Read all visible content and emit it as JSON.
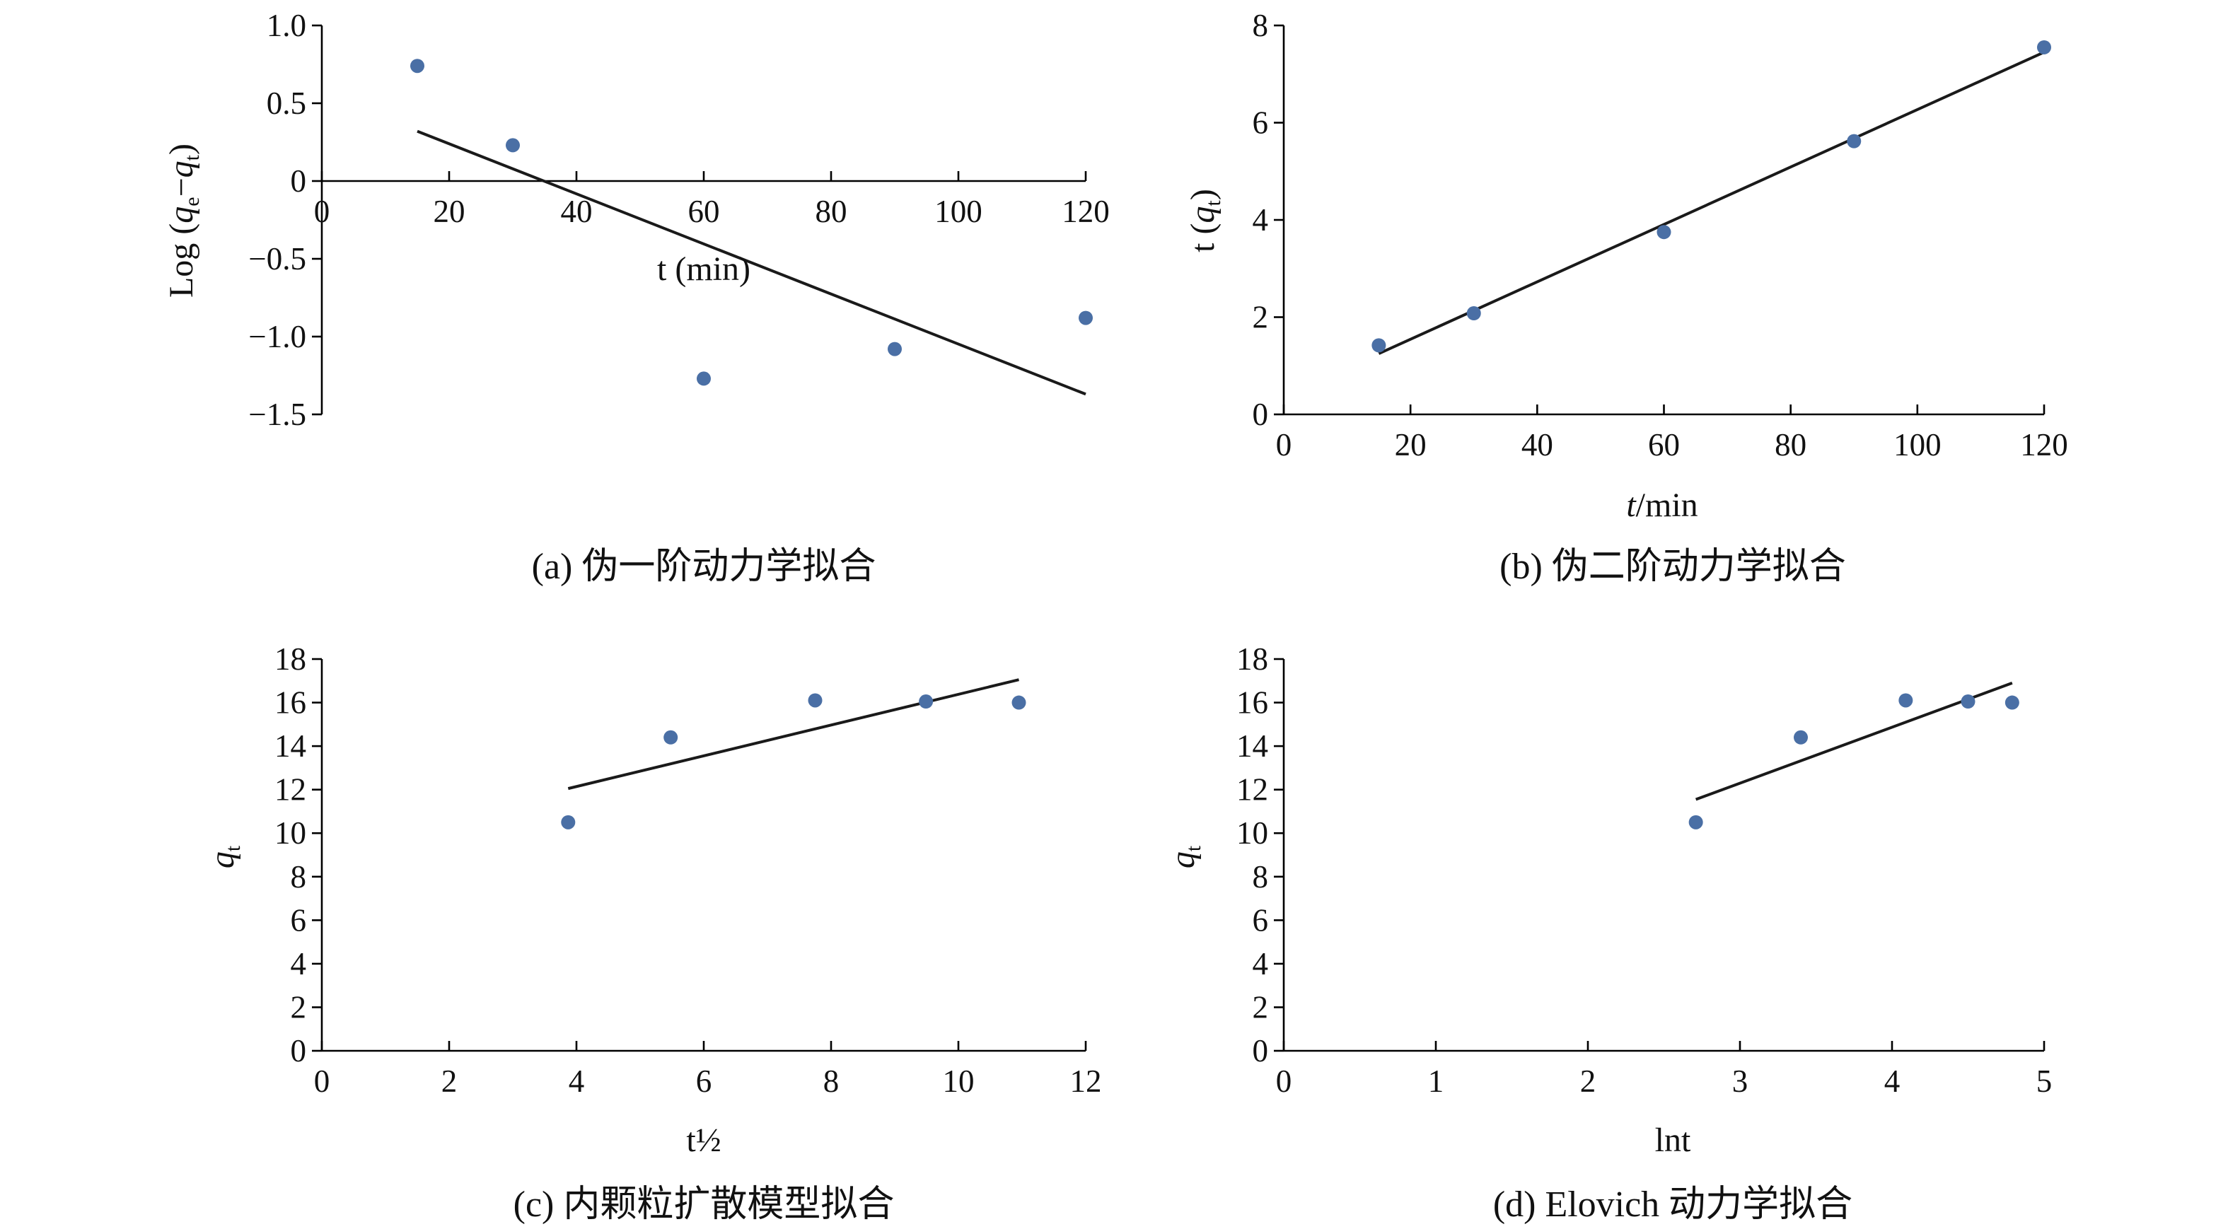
{
  "chart_data": [
    {
      "id": "a",
      "type": "scatter",
      "caption": "(a) 伪一阶动力学拟合",
      "ylabel": {
        "pre": "Log (",
        "q1": "q",
        "s1": "e",
        "mid": "−",
        "q2": "q",
        "s2": "t",
        "post": ")"
      },
      "xlabel": "t (min)",
      "xlim": [
        0,
        120
      ],
      "ylim": [
        -1.5,
        1.0
      ],
      "x_ticks": [
        0,
        20,
        40,
        60,
        80,
        100,
        120
      ],
      "x_tick_labels": [
        "0",
        "20",
        "40",
        "60",
        "80",
        "100",
        "120"
      ],
      "y_ticks": [
        1.0,
        0.5,
        0,
        -0.5,
        -1.0,
        -1.5
      ],
      "y_tick_labels": [
        "1.0",
        "0.5",
        "0",
        "−0.5",
        "−1.0",
        "−1.5"
      ],
      "x_axis_at": 0,
      "points": [
        {
          "x": 15,
          "y": 0.74
        },
        {
          "x": 30,
          "y": 0.23
        },
        {
          "x": 60,
          "y": -1.27
        },
        {
          "x": 90,
          "y": -1.08
        },
        {
          "x": 120,
          "y": -0.88
        }
      ],
      "fit": [
        {
          "x": 15,
          "y": 0.32
        },
        {
          "x": 120,
          "y": -1.37
        }
      ]
    },
    {
      "id": "b",
      "type": "scatter",
      "caption": "(b) 伪二阶动力学拟合",
      "ylabel": {
        "pre": "t (",
        "q1": "q",
        "s1": "t",
        "post": ")"
      },
      "xlabel": {
        "italic": "t",
        "rest": "/min"
      },
      "xlim": [
        0,
        120
      ],
      "ylim": [
        0,
        8
      ],
      "x_ticks": [
        0,
        20,
        40,
        60,
        80,
        100,
        120
      ],
      "x_tick_labels": [
        "0",
        "20",
        "40",
        "60",
        "80",
        "100",
        "120"
      ],
      "y_ticks": [
        0,
        2,
        4,
        6,
        8
      ],
      "y_tick_labels": [
        "0",
        "2",
        "4",
        "6",
        "8"
      ],
      "points": [
        {
          "x": 15,
          "y": 1.42
        },
        {
          "x": 30,
          "y": 2.08
        },
        {
          "x": 60,
          "y": 3.75
        },
        {
          "x": 90,
          "y": 5.62
        },
        {
          "x": 120,
          "y": 7.55
        }
      ],
      "fit": [
        {
          "x": 15,
          "y": 1.25
        },
        {
          "x": 120,
          "y": 7.45
        }
      ]
    },
    {
      "id": "c",
      "type": "scatter",
      "caption": "(c) 内颗粒扩散模型拟合",
      "ylabel": {
        "q1": "q",
        "s1": "t"
      },
      "xlabel": "t½",
      "xlim": [
        0,
        12
      ],
      "ylim": [
        0,
        18
      ],
      "x_ticks": [
        0,
        2,
        4,
        6,
        8,
        10,
        12
      ],
      "x_tick_labels": [
        "0",
        "2",
        "4",
        "6",
        "8",
        "10",
        "12"
      ],
      "y_ticks": [
        0,
        2,
        4,
        6,
        8,
        10,
        12,
        14,
        16,
        18
      ],
      "y_tick_labels": [
        "0",
        "2",
        "4",
        "6",
        "8",
        "10",
        "12",
        "14",
        "16",
        "18"
      ],
      "points": [
        {
          "x": 3.87,
          "y": 10.5
        },
        {
          "x": 5.48,
          "y": 14.4
        },
        {
          "x": 7.75,
          "y": 16.1
        },
        {
          "x": 9.49,
          "y": 16.05
        },
        {
          "x": 10.95,
          "y": 16.0
        }
      ],
      "fit": [
        {
          "x": 3.87,
          "y": 12.05
        },
        {
          "x": 10.95,
          "y": 17.05
        }
      ]
    },
    {
      "id": "d",
      "type": "scatter",
      "caption": "(d) Elovich 动力学拟合",
      "ylabel": {
        "q1": "q",
        "s1": "t"
      },
      "xlabel": "lnt",
      "xlim": [
        0,
        5
      ],
      "ylim": [
        0,
        18
      ],
      "x_ticks": [
        0,
        1,
        2,
        3,
        4,
        5
      ],
      "x_tick_labels": [
        "0",
        "1",
        "2",
        "3",
        "4",
        "5"
      ],
      "y_ticks": [
        0,
        2,
        4,
        6,
        8,
        10,
        12,
        14,
        16,
        18
      ],
      "y_tick_labels": [
        "0",
        "2",
        "4",
        "6",
        "8",
        "10",
        "12",
        "14",
        "16",
        "18"
      ],
      "points": [
        {
          "x": 2.71,
          "y": 10.5
        },
        {
          "x": 3.4,
          "y": 14.4
        },
        {
          "x": 4.09,
          "y": 16.1
        },
        {
          "x": 4.5,
          "y": 16.05
        },
        {
          "x": 4.79,
          "y": 16.0
        }
      ],
      "fit": [
        {
          "x": 2.71,
          "y": 11.55
        },
        {
          "x": 4.79,
          "y": 16.9
        }
      ]
    }
  ]
}
